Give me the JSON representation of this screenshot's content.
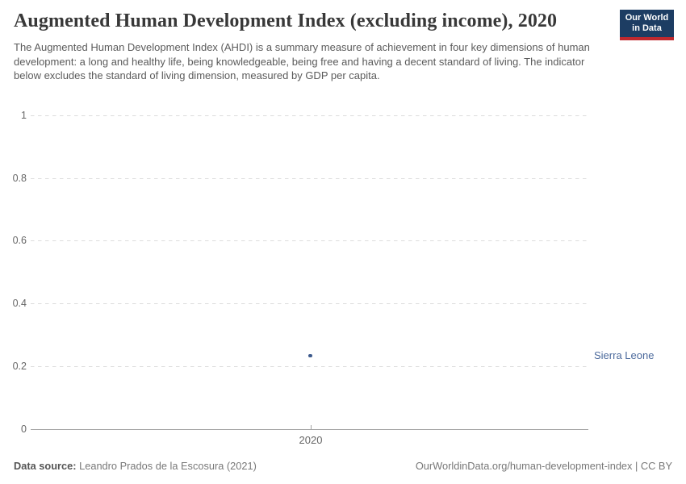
{
  "header": {
    "title": "Augmented Human Development Index (excluding income), 2020",
    "subtitle": "The Augmented Human Development Index (AHDI) is a summary measure of achievement in four key dimensions of human development: a long and healthy life, being knowledgeable, being free and having a decent standard of living. The indicator below excludes the standard of living dimension, measured by GDP per capita.",
    "logo": {
      "line1": "Our World",
      "line2": "in Data"
    }
  },
  "chart_data": {
    "type": "scatter",
    "title": "Augmented Human Development Index (excluding income), 2020",
    "x": [
      2020
    ],
    "series": [
      {
        "name": "Sierra Leone",
        "values": [
          0.233
        ]
      }
    ],
    "xlabel": "",
    "ylabel": "",
    "ylim": [
      0,
      1
    ],
    "yticks": [
      0,
      0.2,
      0.4,
      0.6,
      0.8,
      1
    ],
    "ytick_labels": [
      "0",
      "0.2",
      "0.4",
      "0.6",
      "0.8",
      "1"
    ],
    "xticks": [
      2020
    ],
    "xtick_labels": [
      "2020"
    ],
    "grid": "horizontal-dashed",
    "legend_position": "right-of-plot"
  },
  "colors": {
    "logo_background": "#1d3d63",
    "logo_stripe": "#c0292e",
    "point": "#3d5a8c",
    "entity_label": "#4c6a9c",
    "gridline": "#dcdcdc",
    "axis_line": "#a3a3a3",
    "tick_text": "#666666"
  },
  "footer": {
    "source_label": "Data source:",
    "source_text": " Leandro Prados de la Escosura (2021)",
    "link_text": "OurWorldinData.org/human-development-index | CC BY"
  }
}
